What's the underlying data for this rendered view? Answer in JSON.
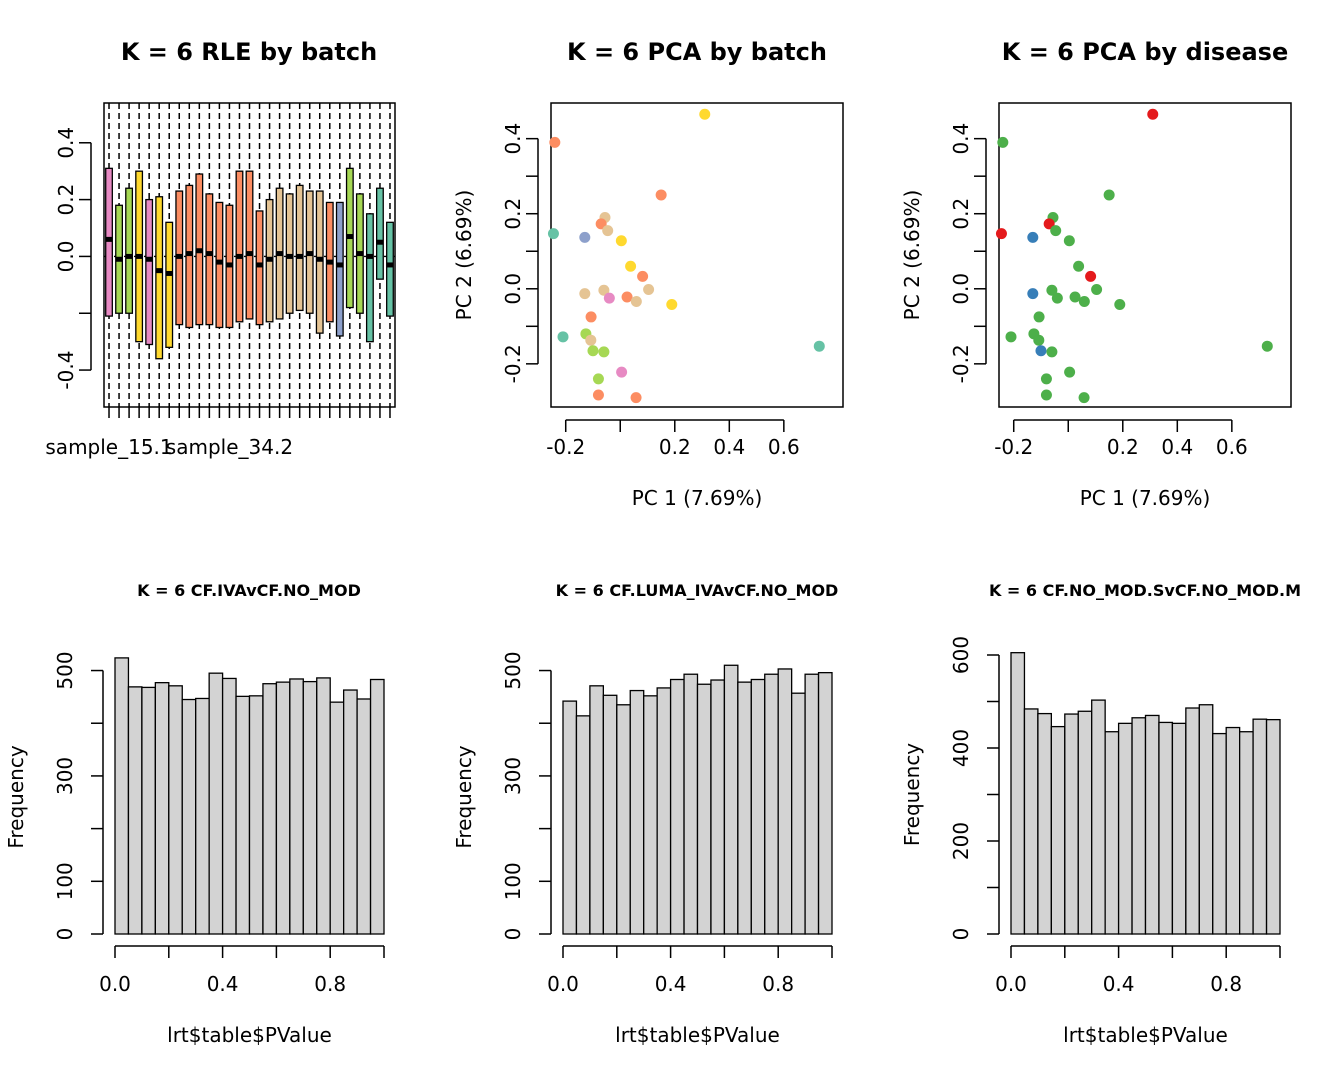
{
  "chart_data": [
    {
      "type": "boxplot",
      "title": "K = 6 RLE by batch",
      "xlabel": "",
      "ylabel": "",
      "x_tick_labels": [
        "sample_15.1",
        "sample_34.2"
      ],
      "yticks": [
        -0.4,
        0.0,
        0.2,
        0.4
      ],
      "ytick_labels": [
        "-0.4",
        "0.0",
        "0.2",
        "0.4"
      ],
      "ylim": [
        -0.53,
        0.54
      ],
      "hline": 0,
      "boxes": [
        {
          "q1": -0.21,
          "median": 0.06,
          "q3": 0.31,
          "color": "#E78AC3"
        },
        {
          "q1": -0.2,
          "median": -0.01,
          "q3": 0.18,
          "color": "#A6D854"
        },
        {
          "q1": -0.2,
          "median": 0.0,
          "q3": 0.24,
          "color": "#A6D854"
        },
        {
          "q1": -0.3,
          "median": 0.0,
          "q3": 0.3,
          "color": "#FFD92F"
        },
        {
          "q1": -0.31,
          "median": -0.01,
          "q3": 0.2,
          "color": "#E78AC3"
        },
        {
          "q1": -0.36,
          "median": -0.05,
          "q3": 0.21,
          "color": "#FFD92F"
        },
        {
          "q1": -0.32,
          "median": -0.06,
          "q3": 0.12,
          "color": "#FFD92F"
        },
        {
          "q1": -0.24,
          "median": 0.0,
          "q3": 0.23,
          "color": "#FC8D62"
        },
        {
          "q1": -0.25,
          "median": 0.01,
          "q3": 0.25,
          "color": "#FC8D62"
        },
        {
          "q1": -0.24,
          "median": 0.02,
          "q3": 0.29,
          "color": "#FC8D62"
        },
        {
          "q1": -0.24,
          "median": 0.01,
          "q3": 0.22,
          "color": "#FC8D62"
        },
        {
          "q1": -0.25,
          "median": -0.02,
          "q3": 0.19,
          "color": "#FC8D62"
        },
        {
          "q1": -0.25,
          "median": -0.03,
          "q3": 0.18,
          "color": "#FC8D62"
        },
        {
          "q1": -0.23,
          "median": 0.0,
          "q3": 0.3,
          "color": "#FC8D62"
        },
        {
          "q1": -0.22,
          "median": 0.01,
          "q3": 0.3,
          "color": "#FC8D62"
        },
        {
          "q1": -0.24,
          "median": -0.03,
          "q3": 0.16,
          "color": "#FC8D62"
        },
        {
          "q1": -0.23,
          "median": -0.01,
          "q3": 0.2,
          "color": "#E5C494"
        },
        {
          "q1": -0.22,
          "median": 0.01,
          "q3": 0.24,
          "color": "#E5C494"
        },
        {
          "q1": -0.2,
          "median": 0.0,
          "q3": 0.22,
          "color": "#E5C494"
        },
        {
          "q1": -0.19,
          "median": 0.0,
          "q3": 0.25,
          "color": "#E5C494"
        },
        {
          "q1": -0.2,
          "median": 0.01,
          "q3": 0.23,
          "color": "#E5C494"
        },
        {
          "q1": -0.27,
          "median": -0.01,
          "q3": 0.23,
          "color": "#E5C494"
        },
        {
          "q1": -0.23,
          "median": -0.02,
          "q3": 0.19,
          "color": "#FC8D62"
        },
        {
          "q1": -0.28,
          "median": -0.03,
          "q3": 0.19,
          "color": "#8DA0CB"
        },
        {
          "q1": -0.18,
          "median": 0.07,
          "q3": 0.31,
          "color": "#A6D854"
        },
        {
          "q1": -0.2,
          "median": 0.01,
          "q3": 0.22,
          "color": "#A6D854"
        },
        {
          "q1": -0.3,
          "median": 0.0,
          "q3": 0.15,
          "color": "#66C2A5"
        },
        {
          "q1": -0.08,
          "median": 0.05,
          "q3": 0.24,
          "color": "#66C2A5"
        },
        {
          "q1": -0.21,
          "median": -0.03,
          "q3": 0.12,
          "color": "#66C2A5"
        }
      ]
    },
    {
      "type": "scatter",
      "title": "K = 6 PCA by batch",
      "xlabel": "PC 1 (7.69%)",
      "ylabel": "PC 2 (6.69%)",
      "xticks": [
        -0.2,
        0.2,
        0.4,
        0.6
      ],
      "xtick_labels": [
        "-0.2",
        "0.2",
        "0.4",
        "0.6"
      ],
      "yticks": [
        -0.2,
        0.0,
        0.2,
        0.4
      ],
      "ytick_labels": [
        "-0.2",
        "0.0",
        "0.2",
        "0.4"
      ],
      "xlim": [
        -0.254,
        0.817
      ],
      "ylim": [
        -0.315,
        0.495
      ],
      "points": [
        {
          "x": -0.24,
          "y": 0.39,
          "color": "#FC8D62"
        },
        {
          "x": 0.31,
          "y": 0.465,
          "color": "#FFD92F"
        },
        {
          "x": 0.15,
          "y": 0.25,
          "color": "#FC8D62"
        },
        {
          "x": -0.056,
          "y": 0.19,
          "color": "#E5C494"
        },
        {
          "x": -0.07,
          "y": 0.173,
          "color": "#FC8D62"
        },
        {
          "x": -0.046,
          "y": 0.155,
          "color": "#E5C494"
        },
        {
          "x": -0.245,
          "y": 0.147,
          "color": "#66C2A5"
        },
        {
          "x": -0.13,
          "y": 0.137,
          "color": "#8DA0CB"
        },
        {
          "x": 0.004,
          "y": 0.128,
          "color": "#FFD92F"
        },
        {
          "x": 0.038,
          "y": 0.06,
          "color": "#FFD92F"
        },
        {
          "x": 0.082,
          "y": 0.033,
          "color": "#FC8D62"
        },
        {
          "x": -0.06,
          "y": -0.004,
          "color": "#E5C494"
        },
        {
          "x": -0.13,
          "y": -0.013,
          "color": "#E5C494"
        },
        {
          "x": 0.104,
          "y": -0.002,
          "color": "#E5C494"
        },
        {
          "x": 0.025,
          "y": -0.022,
          "color": "#FC8D62"
        },
        {
          "x": -0.04,
          "y": -0.025,
          "color": "#E78AC3"
        },
        {
          "x": 0.059,
          "y": -0.034,
          "color": "#E5C494"
        },
        {
          "x": 0.189,
          "y": -0.042,
          "color": "#FFD92F"
        },
        {
          "x": -0.107,
          "y": -0.075,
          "color": "#FC8D62"
        },
        {
          "x": -0.126,
          "y": -0.12,
          "color": "#A6D854"
        },
        {
          "x": -0.21,
          "y": -0.128,
          "color": "#66C2A5"
        },
        {
          "x": -0.108,
          "y": -0.137,
          "color": "#E5C494"
        },
        {
          "x": -0.06,
          "y": -0.168,
          "color": "#A6D854"
        },
        {
          "x": -0.1,
          "y": -0.165,
          "color": "#A6D854"
        },
        {
          "x": 0.73,
          "y": -0.153,
          "color": "#66C2A5"
        },
        {
          "x": 0.005,
          "y": -0.222,
          "color": "#E78AC3"
        },
        {
          "x": -0.08,
          "y": -0.24,
          "color": "#A6D854"
        },
        {
          "x": -0.08,
          "y": -0.283,
          "color": "#FC8D62"
        },
        {
          "x": 0.058,
          "y": -0.29,
          "color": "#FC8D62"
        }
      ]
    },
    {
      "type": "scatter",
      "title": "K = 6 PCA by disease",
      "xlabel": "PC 1 (7.69%)",
      "ylabel": "PC 2 (6.69%)",
      "xticks": [
        -0.2,
        0.2,
        0.4,
        0.6
      ],
      "xtick_labels": [
        "-0.2",
        "0.2",
        "0.4",
        "0.6"
      ],
      "yticks": [
        -0.2,
        0.0,
        0.2,
        0.4
      ],
      "ytick_labels": [
        "-0.2",
        "0.0",
        "0.2",
        "0.4"
      ],
      "xlim": [
        -0.254,
        0.817
      ],
      "ylim": [
        -0.315,
        0.495
      ],
      "points": [
        {
          "x": -0.24,
          "y": 0.39,
          "color": "#4DAF4A"
        },
        {
          "x": 0.31,
          "y": 0.465,
          "color": "#E41A1C"
        },
        {
          "x": 0.15,
          "y": 0.25,
          "color": "#4DAF4A"
        },
        {
          "x": -0.056,
          "y": 0.19,
          "color": "#4DAF4A"
        },
        {
          "x": -0.07,
          "y": 0.173,
          "color": "#E41A1C"
        },
        {
          "x": -0.046,
          "y": 0.155,
          "color": "#4DAF4A"
        },
        {
          "x": -0.245,
          "y": 0.147,
          "color": "#E41A1C"
        },
        {
          "x": -0.13,
          "y": 0.137,
          "color": "#377EB8"
        },
        {
          "x": 0.004,
          "y": 0.128,
          "color": "#4DAF4A"
        },
        {
          "x": 0.038,
          "y": 0.06,
          "color": "#4DAF4A"
        },
        {
          "x": 0.082,
          "y": 0.033,
          "color": "#E41A1C"
        },
        {
          "x": -0.06,
          "y": -0.004,
          "color": "#4DAF4A"
        },
        {
          "x": -0.13,
          "y": -0.013,
          "color": "#377EB8"
        },
        {
          "x": 0.104,
          "y": -0.002,
          "color": "#4DAF4A"
        },
        {
          "x": 0.025,
          "y": -0.022,
          "color": "#4DAF4A"
        },
        {
          "x": -0.04,
          "y": -0.025,
          "color": "#4DAF4A"
        },
        {
          "x": 0.059,
          "y": -0.034,
          "color": "#4DAF4A"
        },
        {
          "x": 0.189,
          "y": -0.042,
          "color": "#4DAF4A"
        },
        {
          "x": -0.107,
          "y": -0.075,
          "color": "#4DAF4A"
        },
        {
          "x": -0.126,
          "y": -0.12,
          "color": "#4DAF4A"
        },
        {
          "x": -0.21,
          "y": -0.128,
          "color": "#4DAF4A"
        },
        {
          "x": -0.108,
          "y": -0.137,
          "color": "#4DAF4A"
        },
        {
          "x": -0.06,
          "y": -0.168,
          "color": "#4DAF4A"
        },
        {
          "x": -0.1,
          "y": -0.165,
          "color": "#377EB8"
        },
        {
          "x": 0.73,
          "y": -0.153,
          "color": "#4DAF4A"
        },
        {
          "x": 0.005,
          "y": -0.222,
          "color": "#4DAF4A"
        },
        {
          "x": -0.08,
          "y": -0.24,
          "color": "#4DAF4A"
        },
        {
          "x": -0.08,
          "y": -0.283,
          "color": "#4DAF4A"
        },
        {
          "x": 0.058,
          "y": -0.29,
          "color": "#4DAF4A"
        }
      ]
    },
    {
      "type": "histogram",
      "title": "K = 6 CF.IVAvCF.NO_MOD",
      "xlabel": "lrt$table$PValue",
      "ylabel": "Frequency",
      "bin_edges": [
        0,
        0.05,
        0.1,
        0.15,
        0.2,
        0.25,
        0.3,
        0.35,
        0.4,
        0.45,
        0.5,
        0.55,
        0.6,
        0.65,
        0.7,
        0.75,
        0.8,
        0.85,
        0.9,
        0.95,
        1.0
      ],
      "values": [
        524,
        469,
        468,
        477,
        471,
        445,
        447,
        495,
        485,
        451,
        452,
        475,
        478,
        484,
        479,
        486,
        440,
        463,
        446,
        483
      ],
      "xticks": [
        0,
        0.2,
        0.4,
        0.6,
        0.8,
        1.0
      ],
      "xtick_labels": [
        "0.0",
        "",
        "0.4",
        "",
        "0.8",
        ""
      ],
      "yticks": [
        0,
        100,
        200,
        300,
        400,
        500
      ],
      "ytick_labels": [
        "0",
        "100",
        "",
        "300",
        "",
        "500"
      ]
    },
    {
      "type": "histogram",
      "title": "K = 6 CF.LUMA_IVAvCF.NO_MOD",
      "xlabel": "lrt$table$PValue",
      "ylabel": "Frequency",
      "bin_edges": [
        0,
        0.05,
        0.1,
        0.15,
        0.2,
        0.25,
        0.3,
        0.35,
        0.4,
        0.45,
        0.5,
        0.55,
        0.6,
        0.65,
        0.7,
        0.75,
        0.8,
        0.85,
        0.9,
        0.95,
        1.0
      ],
      "values": [
        442,
        414,
        471,
        453,
        435,
        462,
        452,
        467,
        483,
        493,
        474,
        482,
        510,
        478,
        483,
        493,
        503,
        457,
        493,
        496
      ],
      "xticks": [
        0,
        0.2,
        0.4,
        0.6,
        0.8,
        1.0
      ],
      "xtick_labels": [
        "0.0",
        "",
        "0.4",
        "",
        "0.8",
        ""
      ],
      "yticks": [
        0,
        100,
        200,
        300,
        400,
        500
      ],
      "ytick_labels": [
        "0",
        "100",
        "",
        "300",
        "",
        "500"
      ]
    },
    {
      "type": "histogram",
      "title": "K = 6 CF.NO_MOD.SvCF.NO_MOD.M",
      "xlabel": "lrt$table$PValue",
      "ylabel": "Frequency",
      "bin_edges": [
        0,
        0.05,
        0.1,
        0.15,
        0.2,
        0.25,
        0.3,
        0.35,
        0.4,
        0.45,
        0.5,
        0.55,
        0.6,
        0.65,
        0.7,
        0.75,
        0.8,
        0.85,
        0.9,
        0.95,
        1.0
      ],
      "values": [
        605,
        484,
        474,
        446,
        473,
        479,
        503,
        435,
        453,
        465,
        470,
        455,
        453,
        486,
        493,
        431,
        444,
        435,
        462,
        461
      ],
      "xticks": [
        0,
        0.2,
        0.4,
        0.6,
        0.8,
        1.0
      ],
      "xtick_labels": [
        "0.0",
        "",
        "0.4",
        "",
        "0.8",
        ""
      ],
      "yticks": [
        0,
        100,
        200,
        300,
        400,
        500,
        600
      ],
      "ytick_labels": [
        "0",
        "",
        "200",
        "",
        "400",
        "",
        "600"
      ]
    }
  ]
}
